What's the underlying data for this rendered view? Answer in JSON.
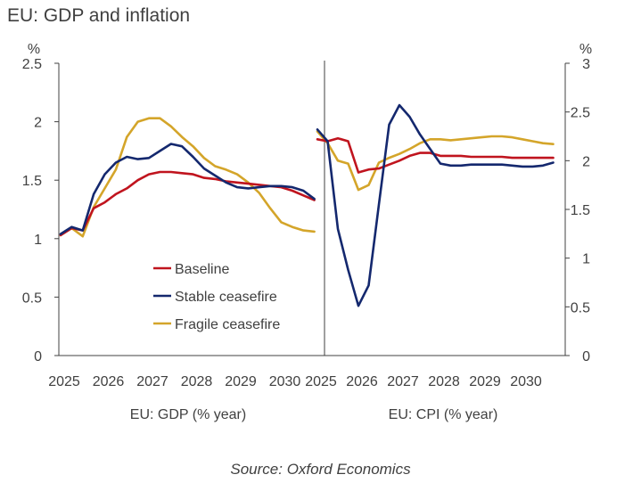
{
  "title": "EU: GDP and inflation",
  "source": "Source: Oxford Economics",
  "colors": {
    "Baseline": "#c0141e",
    "Stable ceasefire": "#14286e",
    "Fragile ceasefire": "#d4a52a",
    "axis": "#404040"
  },
  "chart_data": [
    {
      "type": "line",
      "xlabel": "EU: GDP (% year)",
      "ylabel": "%",
      "xlim": [
        2025,
        2031
      ],
      "ylim": [
        0,
        2.5
      ],
      "yticks": [
        "0",
        "0.5",
        "1",
        "1.5",
        "2",
        "2.5"
      ],
      "xticks": [
        "2025",
        "2026",
        "2027",
        "2028",
        "2029",
        "2030"
      ],
      "axis_side": "left",
      "legend": "inside-bottom-center",
      "series": [
        {
          "name": "Baseline",
          "x": [
            2025.0,
            2025.25,
            2025.5,
            2025.75,
            2026.0,
            2026.25,
            2026.5,
            2026.75,
            2027.0,
            2027.25,
            2027.5,
            2027.75,
            2028.0,
            2028.25,
            2028.5,
            2028.75,
            2029.0,
            2029.25,
            2029.5,
            2029.75,
            2030.0,
            2030.25,
            2030.5,
            2030.75
          ],
          "y": [
            1.03,
            1.09,
            1.07,
            1.26,
            1.31,
            1.38,
            1.43,
            1.5,
            1.55,
            1.57,
            1.57,
            1.56,
            1.55,
            1.52,
            1.51,
            1.49,
            1.48,
            1.47,
            1.46,
            1.45,
            1.44,
            1.41,
            1.37,
            1.33
          ]
        },
        {
          "name": "Stable ceasefire",
          "x": [
            2025.0,
            2025.25,
            2025.5,
            2025.75,
            2026.0,
            2026.25,
            2026.5,
            2026.75,
            2027.0,
            2027.25,
            2027.5,
            2027.75,
            2028.0,
            2028.25,
            2028.5,
            2028.75,
            2029.0,
            2029.25,
            2029.5,
            2029.75,
            2030.0,
            2030.25,
            2030.5,
            2030.75
          ],
          "y": [
            1.04,
            1.1,
            1.07,
            1.38,
            1.55,
            1.65,
            1.7,
            1.68,
            1.69,
            1.75,
            1.81,
            1.79,
            1.7,
            1.6,
            1.54,
            1.48,
            1.44,
            1.43,
            1.44,
            1.45,
            1.45,
            1.44,
            1.41,
            1.34
          ]
        },
        {
          "name": "Fragile ceasefire",
          "x": [
            2025.0,
            2025.25,
            2025.5,
            2025.75,
            2026.0,
            2026.25,
            2026.5,
            2026.75,
            2027.0,
            2027.25,
            2027.5,
            2027.75,
            2028.0,
            2028.25,
            2028.5,
            2028.75,
            2029.0,
            2029.25,
            2029.5,
            2029.75,
            2030.0,
            2030.25,
            2030.5,
            2030.75
          ],
          "y": [
            1.03,
            1.09,
            1.02,
            1.27,
            1.43,
            1.59,
            1.87,
            2.0,
            2.03,
            2.03,
            1.96,
            1.87,
            1.79,
            1.69,
            1.62,
            1.59,
            1.55,
            1.48,
            1.39,
            1.26,
            1.14,
            1.1,
            1.07,
            1.06
          ]
        }
      ]
    },
    {
      "type": "line",
      "xlabel": "EU: CPI (% year)",
      "ylabel": "%",
      "xlim": [
        2025,
        2031
      ],
      "ylim": [
        0,
        3
      ],
      "yticks": [
        "0",
        "0.5",
        "1",
        "1.5",
        "2",
        "2.5",
        "3"
      ],
      "xticks": [
        "2025",
        "2026",
        "2027",
        "2028",
        "2029",
        "2030"
      ],
      "axis_side": "right",
      "series": [
        {
          "name": "Baseline",
          "x": [
            2025.0,
            2025.25,
            2025.5,
            2025.75,
            2026.0,
            2026.25,
            2026.5,
            2026.75,
            2027.0,
            2027.25,
            2027.5,
            2027.75,
            2028.0,
            2028.25,
            2028.5,
            2028.75,
            2029.0,
            2029.25,
            2029.5,
            2029.75,
            2030.0,
            2030.25,
            2030.5,
            2030.75
          ],
          "y": [
            2.22,
            2.2,
            2.23,
            2.2,
            1.88,
            1.91,
            1.92,
            1.96,
            2.0,
            2.05,
            2.08,
            2.08,
            2.05,
            2.05,
            2.05,
            2.04,
            2.04,
            2.04,
            2.04,
            2.03,
            2.03,
            2.03,
            2.03,
            2.03
          ]
        },
        {
          "name": "Stable ceasefire",
          "x": [
            2025.0,
            2025.25,
            2025.5,
            2025.75,
            2026.0,
            2026.25,
            2026.5,
            2026.75,
            2027.0,
            2027.25,
            2027.5,
            2027.75,
            2028.0,
            2028.25,
            2028.5,
            2028.75,
            2029.0,
            2029.25,
            2029.5,
            2029.75,
            2030.0,
            2030.25,
            2030.5,
            2030.75
          ],
          "y": [
            2.32,
            2.2,
            1.3,
            0.88,
            0.51,
            0.72,
            1.55,
            2.37,
            2.57,
            2.45,
            2.27,
            2.12,
            1.97,
            1.95,
            1.95,
            1.96,
            1.96,
            1.96,
            1.96,
            1.95,
            1.94,
            1.94,
            1.95,
            1.98
          ]
        },
        {
          "name": "Fragile ceasefire",
          "x": [
            2025.0,
            2025.25,
            2025.5,
            2025.75,
            2026.0,
            2026.25,
            2026.5,
            2026.75,
            2027.0,
            2027.25,
            2027.5,
            2027.75,
            2028.0,
            2028.25,
            2028.5,
            2028.75,
            2029.0,
            2029.25,
            2029.5,
            2029.75,
            2030.0,
            2030.25,
            2030.5,
            2030.75
          ],
          "y": [
            2.3,
            2.18,
            2.0,
            1.97,
            1.7,
            1.75,
            1.98,
            2.03,
            2.07,
            2.12,
            2.18,
            2.22,
            2.22,
            2.21,
            2.22,
            2.23,
            2.24,
            2.25,
            2.25,
            2.24,
            2.22,
            2.2,
            2.18,
            2.17
          ]
        }
      ]
    }
  ]
}
